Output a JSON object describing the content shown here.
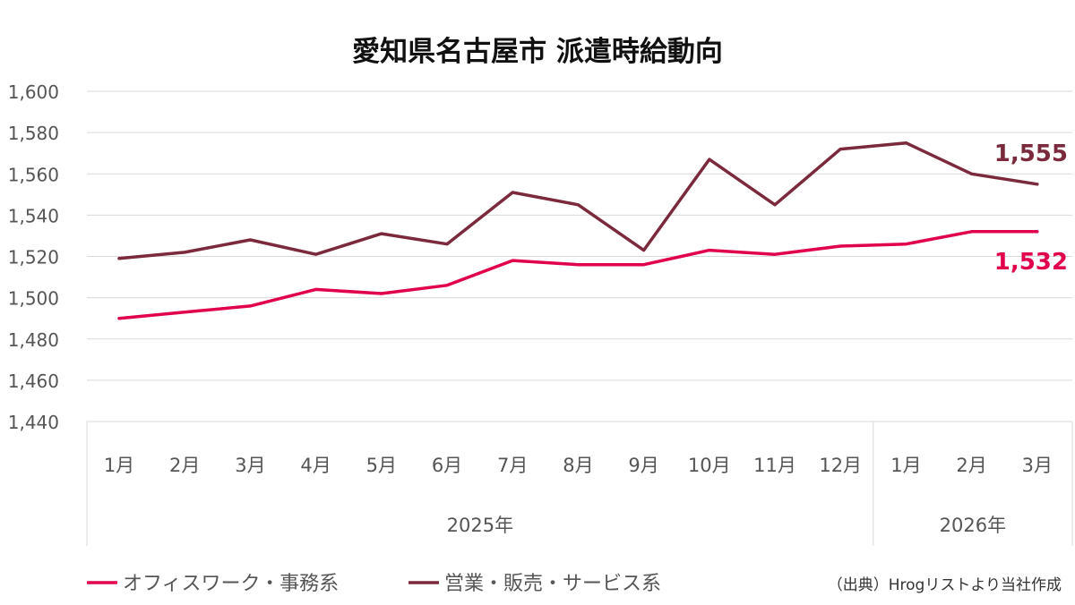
{
  "chart_data": {
    "type": "line",
    "title": "愛知県名古屋市 派遣時給動向",
    "categories": [
      "1月",
      "2月",
      "3月",
      "4月",
      "5月",
      "6月",
      "7月",
      "8月",
      "9月",
      "10月",
      "11月",
      "12月",
      "1月",
      "2月",
      "3月"
    ],
    "year_groups": [
      {
        "label": "2025年",
        "count": 12
      },
      {
        "label": "2026年",
        "count": 3
      }
    ],
    "ylim": [
      1440,
      1600
    ],
    "yticks": [
      1440,
      1460,
      1480,
      1500,
      1520,
      1540,
      1560,
      1580,
      1600
    ],
    "ytick_labels": [
      "1,440",
      "1,460",
      "1,480",
      "1,500",
      "1,520",
      "1,540",
      "1,560",
      "1,580",
      "1,600"
    ],
    "grid": true,
    "legend_position": "bottom",
    "series": [
      {
        "name": "オフィスワーク・事務系",
        "color": "#e0004d",
        "values": [
          1490,
          1493,
          1496,
          1504,
          1502,
          1506,
          1518,
          1516,
          1516,
          1523,
          1521,
          1525,
          1526,
          1532,
          1532
        ],
        "end_label": "1,532"
      },
      {
        "name": "営業・販売・サービス系",
        "color": "#7a2a3c",
        "values": [
          1519,
          1522,
          1528,
          1521,
          1531,
          1526,
          1551,
          1545,
          1523,
          1567,
          1545,
          1572,
          1575,
          1560,
          1555
        ],
        "end_label": "1,555"
      }
    ]
  },
  "source": "（出典）Hrogリストより当社作成"
}
